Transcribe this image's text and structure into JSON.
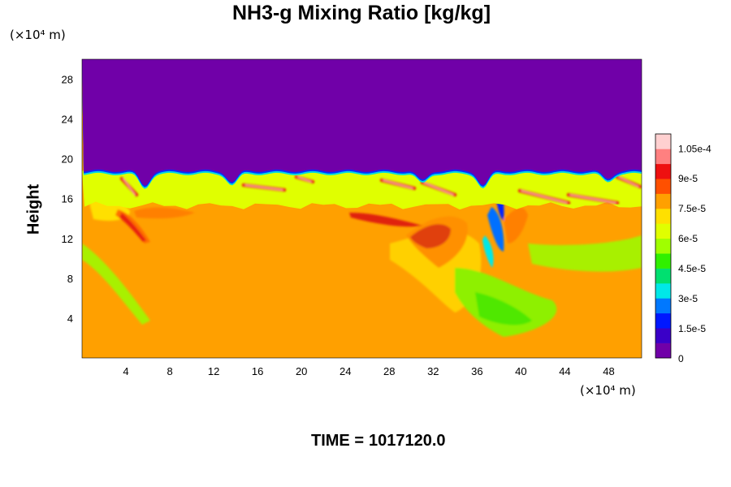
{
  "chart_data": {
    "type": "heatmap",
    "title": "NH3-g Mixing Ratio [kg/kg]",
    "ylabel": "Height",
    "x_unit_label": "(×10⁴ m)",
    "y_unit_label": "(×10⁴ m)",
    "xlim": [
      0,
      51
    ],
    "ylim": [
      0,
      30
    ],
    "x_ticks": [
      4,
      8,
      12,
      16,
      20,
      24,
      28,
      32,
      36,
      40,
      44,
      48
    ],
    "y_ticks": [
      4,
      8,
      12,
      16,
      20,
      24,
      28
    ],
    "colorbar": {
      "min": 0,
      "max": 0.000112,
      "tick_values": [
        0,
        1.5e-05,
        3e-05,
        4.5e-05,
        6e-05,
        7.5e-05,
        9e-05,
        0.000105
      ],
      "tick_labels": [
        "0",
        "1.5e-5",
        "3e-5",
        "4.5e-5",
        "6e-5",
        "7.5e-5",
        "9e-5",
        "1.05e-4"
      ],
      "colors": [
        "#7000a8",
        "#3a00c8",
        "#0018ff",
        "#0078ff",
        "#00e8e8",
        "#00e070",
        "#30f000",
        "#a0ff00",
        "#e0ff00",
        "#ffe000",
        "#ffa000",
        "#ff5000",
        "#ee1010",
        "#ff8080",
        "#ffd0d0"
      ]
    },
    "regions": {
      "upper_layer_top_height": 18.8,
      "mid_layer_range": [
        15.3,
        18.8
      ],
      "lower_layer_range": [
        0,
        15.3
      ],
      "upper_layer_value": 0,
      "mid_layer_value": 6e-05,
      "lower_layer_value": 7.8e-05,
      "peak_value": 0.000112
    }
  },
  "footer": {
    "time_label": "TIME =",
    "time_value": "1017120.0"
  }
}
